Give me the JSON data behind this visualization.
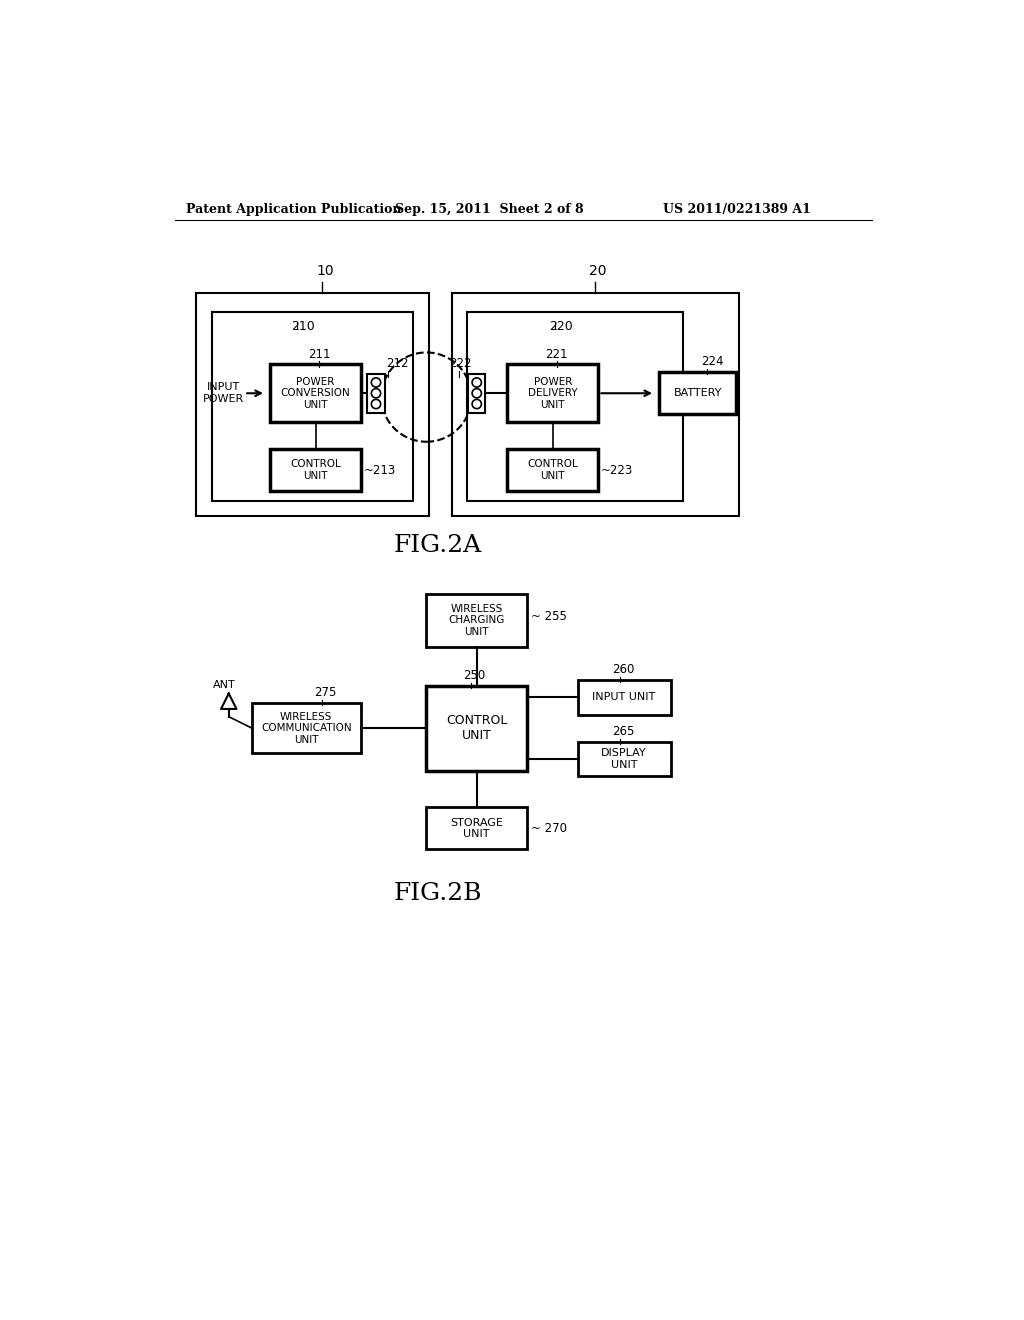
{
  "bg_color": "#ffffff",
  "header_left": "Patent Application Publication",
  "header_mid": "Sep. 15, 2011  Sheet 2 of 8",
  "header_right": "US 2011/0221389 A1",
  "fig2a_label": "FIG.2A",
  "fig2b_label": "FIG.2B",
  "top_label_10": "10",
  "top_label_20": "20",
  "box_210_label": "210",
  "box_220_label": "220",
  "input_power_text": "INPUT\nPOWER",
  "power_conv_text": "POWER\nCONVERSION\nUNIT",
  "power_conv_num": "211",
  "coil_tx_num": "212",
  "coil_rx_num": "222",
  "power_del_text": "POWER\nDELIVERY\nUNIT",
  "power_del_num": "221",
  "battery_text": "BATTERY",
  "battery_num": "224",
  "control1_text": "CONTROL\nUNIT",
  "control1_num": "213",
  "control2_text": "CONTROL\nUNIT",
  "control2_num": "223",
  "wireless_charging_text": "WIRELESS\nCHARGING\nUNIT",
  "wireless_charging_num": "255",
  "control_unit_text": "CONTROL\nUNIT",
  "control_unit_num": "250",
  "input_unit_text": "INPUT UNIT",
  "input_unit_num": "260",
  "display_unit_text": "DISPLAY\nUNIT",
  "display_unit_num": "265",
  "storage_unit_text": "STORAGE\nUNIT",
  "storage_unit_num": "270",
  "wireless_comm_text": "WIRELESS\nCOMMUNICATION\nUNIT",
  "wireless_comm_num": "275",
  "ant_text": "ANT"
}
